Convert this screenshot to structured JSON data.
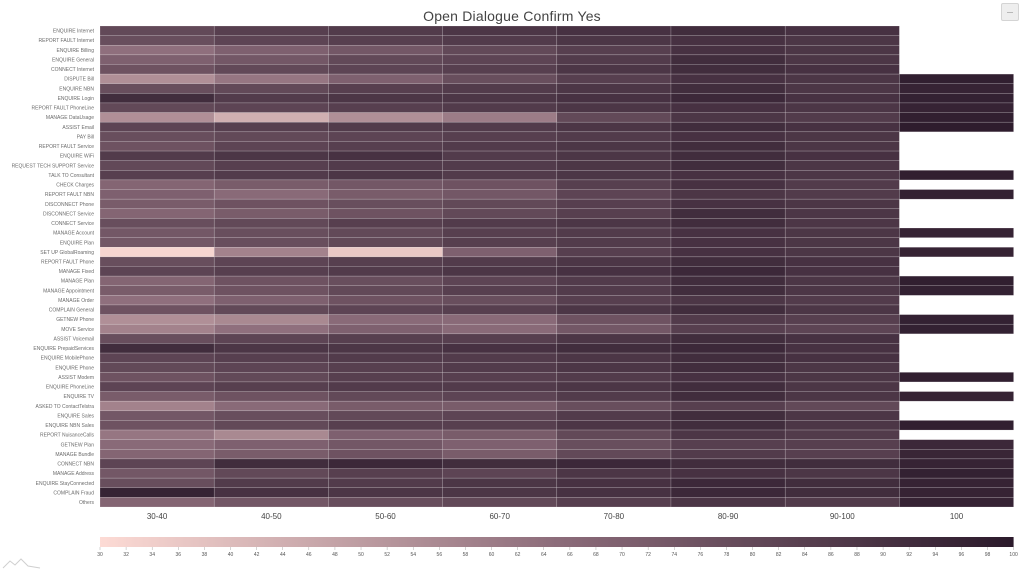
{
  "chart_data": {
    "type": "heatmap",
    "title": "Open Dialogue Confirm Yes",
    "columns": [
      "30-40",
      "40-50",
      "50-60",
      "60-70",
      "70-80",
      "80-90",
      "90-100",
      "100"
    ],
    "rows": [
      "ENQUIRE Internet",
      "REPORT FAULT Internet",
      "ENQUIRE Billing",
      "ENQUIRE General",
      "CONNECT Internet",
      "DISPUTE Bill",
      "ENQUIRE NBN",
      "ENQUIRE Login",
      "REPORT FAULT PhoneLine",
      "MANAGE DataUsage",
      "ASSIST Email",
      "PAY Bill",
      "REPORT FAULT Service",
      "ENQUIRE WiFi",
      "REQUEST TECH SUPPORT Service",
      "TALK TO Consultant",
      "CHECK Charges",
      "REPORT FAULT NBN",
      "DISCONNECT Phone",
      "DISCONNECT Service",
      "CONNECT Service",
      "MANAGE Account",
      "ENQUIRE Plan",
      "SET UP GlobalRoaming",
      "REPORT FAULT Phone",
      "MANAGE Fixed",
      "MANAGE Plan",
      "MANAGE Appointment",
      "MANAGE Order",
      "COMPLAIN General",
      "GETNEW Phone",
      "MOVE Service",
      "ASSIST Voicemail",
      "ENQUIRE PrepaidServices",
      "ENQUIRE MobilePhone",
      "ENQUIRE Phone",
      "ASSIST Modem",
      "ENQUIRE PhoneLine",
      "ENQUIRE TV",
      "ASKED TO ContactTelstra",
      "ENQUIRE Sales",
      "ENQUIRE NBN Sales",
      "REPORT NuisanceCalls",
      "GETNEW Plan",
      "MANAGE Bundle",
      "CONNECT NBN",
      "MANAGE Address",
      "ENQUIRE StayConnected",
      "COMPLAIN Fraud",
      "Others"
    ],
    "values": [
      [
        80,
        84,
        86,
        88,
        90,
        92,
        90,
        null
      ],
      [
        78,
        82,
        84,
        86,
        88,
        90,
        88,
        null
      ],
      [
        64,
        70,
        74,
        80,
        84,
        90,
        88,
        null
      ],
      [
        70,
        74,
        80,
        82,
        86,
        92,
        88,
        null
      ],
      [
        76,
        80,
        82,
        84,
        88,
        92,
        90,
        null
      ],
      [
        54,
        62,
        70,
        78,
        84,
        90,
        88,
        98
      ],
      [
        78,
        80,
        84,
        86,
        88,
        92,
        88,
        96
      ],
      [
        92,
        86,
        88,
        88,
        90,
        94,
        90,
        97
      ],
      [
        80,
        82,
        84,
        86,
        88,
        90,
        88,
        96
      ],
      [
        54,
        44,
        54,
        60,
        80,
        88,
        86,
        98
      ],
      [
        82,
        84,
        86,
        86,
        88,
        92,
        90,
        99
      ],
      [
        78,
        80,
        82,
        84,
        86,
        90,
        88,
        null
      ],
      [
        76,
        82,
        84,
        86,
        88,
        92,
        88,
        null
      ],
      [
        86,
        88,
        90,
        86,
        88,
        92,
        90,
        null
      ],
      [
        80,
        84,
        86,
        86,
        88,
        92,
        88,
        null
      ],
      [
        84,
        86,
        88,
        86,
        88,
        90,
        88,
        98
      ],
      [
        68,
        72,
        74,
        76,
        84,
        90,
        86,
        null
      ],
      [
        70,
        66,
        72,
        74,
        82,
        88,
        86,
        97
      ],
      [
        72,
        76,
        78,
        80,
        84,
        90,
        88,
        null
      ],
      [
        68,
        72,
        76,
        80,
        84,
        92,
        88,
        null
      ],
      [
        78,
        80,
        84,
        86,
        88,
        92,
        88,
        null
      ],
      [
        74,
        78,
        80,
        84,
        86,
        90,
        88,
        96
      ],
      [
        74,
        78,
        80,
        84,
        86,
        90,
        88,
        null
      ],
      [
        32,
        58,
        36,
        70,
        84,
        90,
        88,
        96
      ],
      [
        78,
        82,
        84,
        86,
        88,
        92,
        90,
        null
      ],
      [
        82,
        84,
        86,
        88,
        90,
        94,
        90,
        null
      ],
      [
        68,
        76,
        78,
        82,
        86,
        92,
        88,
        98
      ],
      [
        72,
        76,
        80,
        84,
        86,
        92,
        88,
        97
      ],
      [
        64,
        70,
        76,
        78,
        84,
        88,
        86,
        null
      ],
      [
        76,
        80,
        82,
        84,
        88,
        92,
        88,
        null
      ],
      [
        54,
        56,
        66,
        66,
        76,
        86,
        84,
        97
      ],
      [
        58,
        64,
        70,
        66,
        74,
        84,
        82,
        97
      ],
      [
        78,
        82,
        84,
        84,
        88,
        92,
        90,
        null
      ],
      [
        92,
        88,
        88,
        90,
        92,
        94,
        90,
        null
      ],
      [
        82,
        84,
        86,
        86,
        88,
        92,
        90,
        null
      ],
      [
        80,
        82,
        84,
        86,
        88,
        92,
        88,
        null
      ],
      [
        76,
        80,
        84,
        84,
        86,
        90,
        88,
        98
      ],
      [
        82,
        84,
        86,
        86,
        88,
        92,
        88,
        null
      ],
      [
        72,
        76,
        80,
        82,
        86,
        92,
        88,
        96
      ],
      [
        58,
        66,
        72,
        72,
        78,
        84,
        80,
        null
      ],
      [
        74,
        78,
        80,
        82,
        86,
        92,
        88,
        null
      ],
      [
        76,
        80,
        84,
        84,
        88,
        92,
        88,
        98
      ],
      [
        62,
        56,
        70,
        72,
        80,
        88,
        86,
        null
      ],
      [
        66,
        70,
        74,
        70,
        78,
        84,
        84,
        94
      ],
      [
        68,
        72,
        76,
        72,
        80,
        86,
        84,
        95
      ],
      [
        82,
        92,
        94,
        92,
        94,
        92,
        92,
        96
      ],
      [
        74,
        80,
        84,
        82,
        88,
        90,
        88,
        97
      ],
      [
        78,
        86,
        86,
        88,
        90,
        94,
        92,
        96
      ],
      [
        96,
        90,
        88,
        88,
        90,
        94,
        92,
        96
      ],
      [
        68,
        74,
        78,
        80,
        84,
        88,
        86,
        96
      ]
    ],
    "color_scale": {
      "min": 30,
      "max": 100,
      "low_color": "#fddbd5",
      "high_color": "#2b1a2b",
      "ticks": [
        30,
        32,
        34,
        36,
        38,
        40,
        42,
        44,
        46,
        48,
        50,
        52,
        54,
        56,
        58,
        60,
        62,
        64,
        66,
        68,
        70,
        72,
        74,
        76,
        78,
        80,
        82,
        84,
        86,
        88,
        90,
        92,
        94,
        96,
        98,
        100
      ]
    }
  }
}
